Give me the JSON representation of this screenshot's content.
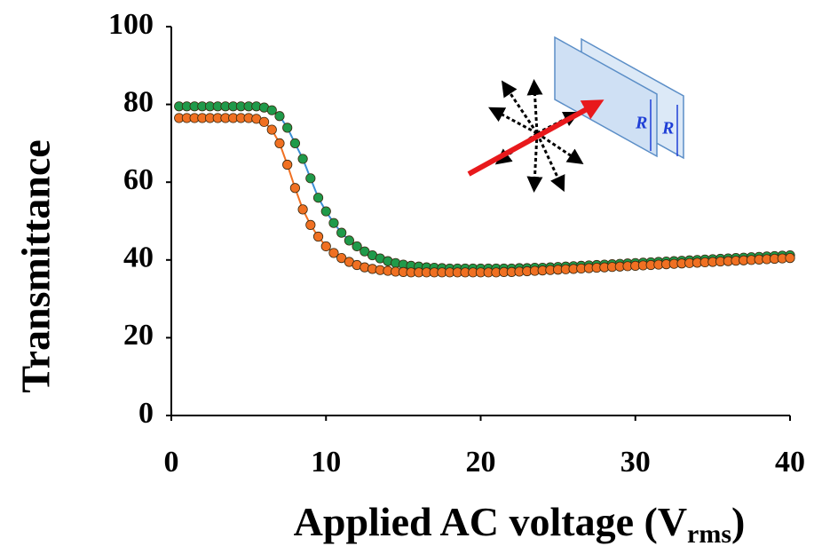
{
  "chart_data": {
    "type": "line",
    "x_label": {
      "text": "Applied AC voltage (V",
      "subscript": "rms",
      "suffix": ")"
    },
    "y_label": "Transmittance",
    "x": [
      0.5,
      1,
      1.5,
      2,
      2.5,
      3,
      3.5,
      4,
      4.5,
      5,
      5.5,
      6,
      6.5,
      7,
      7.5,
      8,
      8.5,
      9,
      9.5,
      10,
      10.5,
      11,
      11.5,
      12,
      12.5,
      13,
      13.5,
      14,
      14.5,
      15,
      15.5,
      16,
      16.5,
      17,
      17.5,
      18,
      18.5,
      19,
      19.5,
      20,
      20.5,
      21,
      21.5,
      22,
      22.5,
      23,
      23.5,
      24,
      24.5,
      25,
      25.5,
      26,
      26.5,
      27,
      27.5,
      28,
      28.5,
      29,
      29.5,
      30,
      30.5,
      31,
      31.5,
      32,
      32.5,
      33,
      33.5,
      34,
      34.5,
      35,
      35.5,
      36,
      36.5,
      37,
      37.5,
      38,
      38.5,
      39,
      39.5,
      40
    ],
    "series": [
      {
        "color": "#1f9a4a",
        "line_color": "#3b8fd4",
        "values": [
          79.5,
          79.5,
          79.5,
          79.5,
          79.5,
          79.5,
          79.5,
          79.5,
          79.5,
          79.5,
          79.5,
          79.2,
          78.5,
          77,
          74,
          70,
          66,
          61,
          56,
          52.5,
          49.5,
          47,
          45,
          43.5,
          42.2,
          41.2,
          40.4,
          39.7,
          39.2,
          38.8,
          38.5,
          38.3,
          38.1,
          38,
          37.9,
          37.8,
          37.8,
          37.8,
          37.8,
          37.8,
          37.8,
          37.8,
          37.8,
          37.8,
          37.9,
          37.9,
          38,
          38,
          38.1,
          38.2,
          38.3,
          38.4,
          38.5,
          38.6,
          38.7,
          38.8,
          38.9,
          39,
          39.1,
          39.2,
          39.3,
          39.4,
          39.5,
          39.6,
          39.7,
          39.8,
          39.9,
          40,
          40.1,
          40.2,
          40.3,
          40.4,
          40.5,
          40.6,
          40.7,
          40.8,
          40.9,
          41,
          41.1,
          41.2
        ]
      },
      {
        "color": "#f07022",
        "line_color": "#f07022",
        "values": [
          76.5,
          76.5,
          76.5,
          76.5,
          76.5,
          76.5,
          76.5,
          76.5,
          76.5,
          76.5,
          76.3,
          75.5,
          73.5,
          70,
          64.5,
          58.5,
          53,
          49,
          46,
          43.5,
          41.8,
          40.5,
          39.5,
          38.7,
          38.1,
          37.7,
          37.4,
          37.2,
          37,
          36.9,
          36.8,
          36.8,
          36.8,
          36.8,
          36.8,
          36.8,
          36.8,
          36.8,
          36.8,
          36.8,
          36.8,
          36.8,
          36.9,
          36.9,
          37,
          37.1,
          37.2,
          37.3,
          37.4,
          37.5,
          37.6,
          37.7,
          37.8,
          37.9,
          38,
          38.1,
          38.2,
          38.3,
          38.4,
          38.5,
          38.6,
          38.7,
          38.8,
          38.9,
          39,
          39.1,
          39.2,
          39.3,
          39.4,
          39.5,
          39.6,
          39.7,
          39.8,
          39.9,
          40,
          40.1,
          40.2,
          40.3,
          40.4,
          40.5
        ]
      }
    ],
    "xlim": [
      0,
      40
    ],
    "xticks": [
      0,
      10,
      20,
      30,
      40
    ],
    "ylim": [
      0,
      100
    ],
    "yticks": [
      0,
      20,
      40,
      60,
      80,
      100
    ],
    "inset_labels": [
      "R",
      "R"
    ]
  }
}
